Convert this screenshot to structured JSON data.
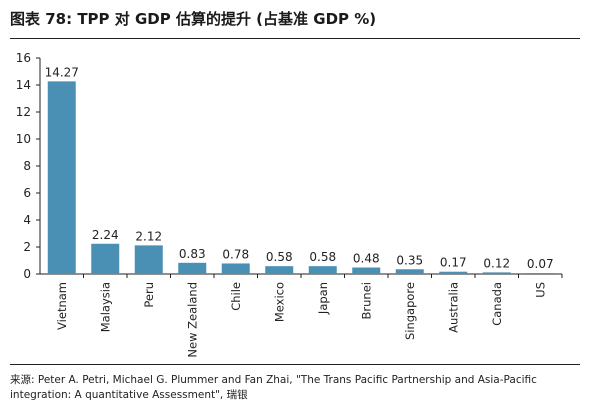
{
  "chart_data": {
    "type": "bar",
    "title": "图表 78: TPP 对 GDP 估算的提升 (占基准 GDP %)",
    "categories": [
      "Vietnam",
      "Malaysia",
      "Peru",
      "New Zealand",
      "Chile",
      "Mexico",
      "Japan",
      "Brunei",
      "Singapore",
      "Australia",
      "Canada",
      "US"
    ],
    "values": [
      14.27,
      2.24,
      2.12,
      0.83,
      0.78,
      0.58,
      0.58,
      0.48,
      0.35,
      0.17,
      0.12,
      0.07
    ],
    "value_labels": [
      "14.27",
      "2.24",
      "2.12",
      "0.83",
      "0.78",
      "0.58",
      "0.58",
      "0.48",
      "0.35",
      "0.17",
      "0.12",
      "0.07"
    ],
    "yticks": [
      "0",
      "2",
      "4",
      "6",
      "8",
      "10",
      "12",
      "14",
      "16"
    ],
    "ylim": [
      0,
      16
    ],
    "xlabel": "",
    "ylabel": "",
    "bar_color": "#4a90b5",
    "grid": false,
    "legend": "none"
  },
  "source": "来源: Peter A. Petri, Michael G. Plummer and Fan Zhai, \"The Trans Pacific Partnership and Asia-Pacific integration: A quantitative Assessment\", 瑞银"
}
